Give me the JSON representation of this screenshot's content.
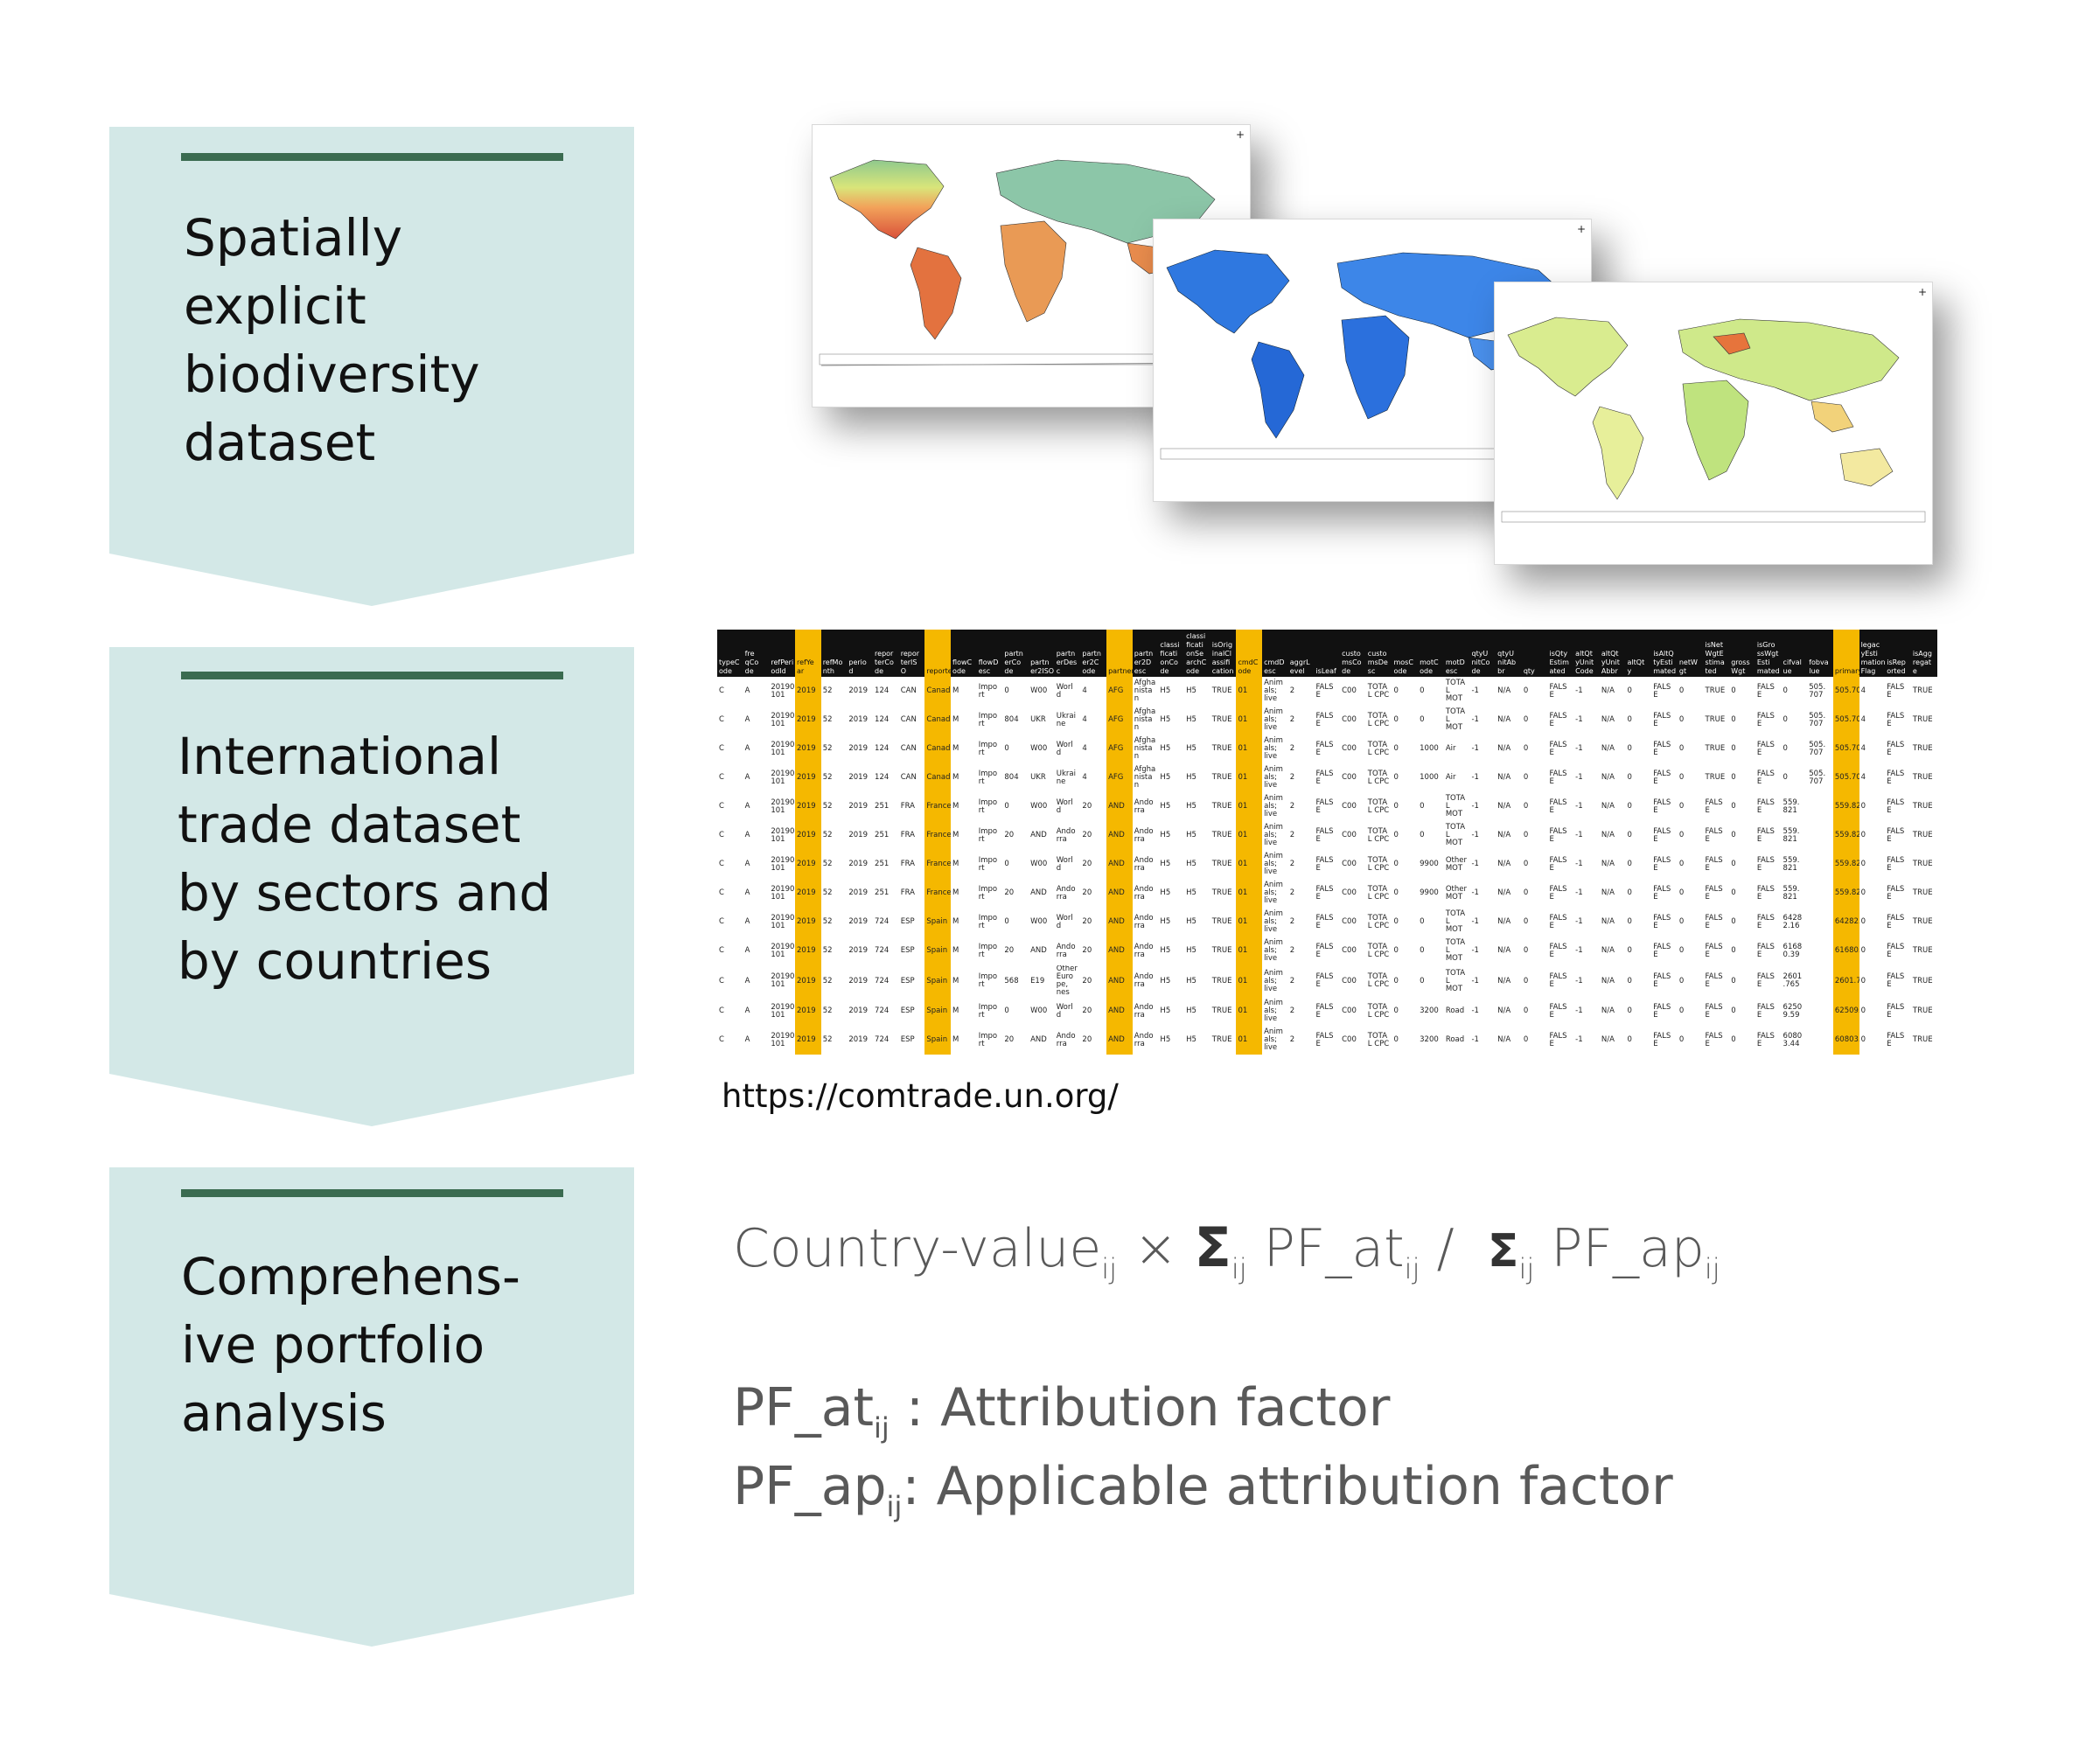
{
  "steps": [
    {
      "lines": [
        "Spatially",
        "explicit",
        "biodiversity",
        "dataset"
      ]
    },
    {
      "lines": [
        "International",
        "trade dataset",
        "by sectors and",
        "by countries"
      ]
    },
    {
      "lines": [
        "Comprehens-",
        "ive portfolio",
        "analysis"
      ]
    }
  ],
  "colors": {
    "panel": "#d3e8e7",
    "bar": "#3a6b50",
    "highlight": "#f5b800",
    "text_grey": "#595959"
  },
  "maps": {
    "north_arrow": "+"
  },
  "table": {
    "headers": [
      "typeC ode",
      "fre qCo de",
      "refPeri odId",
      "refYe ar",
      "refMo nth",
      "perio d",
      "repor terCo de",
      "repor terIS O",
      "reporterDesc",
      "flowC ode",
      "flowD esc",
      "partn erCo de",
      "partn er2ISO",
      "partn erDes c",
      "partn er2C ode",
      "partner2ISO",
      "partn er2D esc",
      "classi ficati onCo de",
      "classi ficati onSe archC ode",
      "isOrig inalCl assifi cation",
      "cmdC ode",
      "cmdD esc",
      "aggrL evel",
      "isLeaf",
      "custo msCo de",
      "custo msDe sc",
      "mosC ode",
      "motC ode",
      "motD esc",
      "qtyU nitCo de",
      "qtyU nitAb br",
      "qty",
      "isQty Estim ated",
      "altQt yUnit Code",
      "altQt yUnit Abbr",
      "altQt y",
      "isAltQ tyEsti mated",
      "netW gt",
      "isNet WgtE stima ted",
      "gross Wgt",
      "isGro ssWgt Esti mated",
      "cifval ue",
      "fobva lue",
      "primaryValue",
      "legac yEsti mation Flag",
      "isRep orted",
      "isAgg regat e"
    ],
    "highlight_cols": [
      3,
      8,
      15,
      20,
      43
    ],
    "rows": [
      [
        "C",
        "A",
        "20190 101",
        "2019",
        "52",
        "2019",
        "124",
        "CAN",
        "Canada",
        "M",
        "Impo rt",
        "0",
        "W00",
        "Worl d",
        "4",
        "AFG",
        "Afgha nista n",
        "H5",
        "H5",
        "TRUE",
        "01",
        "Anim als; live",
        "2",
        "FALS E",
        "C00",
        "TOTA L CPC",
        "0",
        "0",
        "TOTA L MOT",
        "-1",
        "N/A",
        "0",
        "FALS E",
        "-1",
        "N/A",
        "0",
        "FALS E",
        "0",
        "TRUE",
        "0",
        "FALS E",
        "0",
        "505. 707",
        "505.707",
        "4",
        "FALS E",
        "TRUE"
      ],
      [
        "C",
        "A",
        "20190 101",
        "2019",
        "52",
        "2019",
        "124",
        "CAN",
        "Canada",
        "M",
        "Impo rt",
        "804",
        "UKR",
        "Ukrai ne",
        "4",
        "AFG",
        "Afgha nista n",
        "H5",
        "H5",
        "TRUE",
        "01",
        "Anim als; live",
        "2",
        "FALS E",
        "C00",
        "TOTA L CPC",
        "0",
        "0",
        "TOTA L MOT",
        "-1",
        "N/A",
        "0",
        "FALS E",
        "-1",
        "N/A",
        "0",
        "FALS E",
        "0",
        "TRUE",
        "0",
        "FALS E",
        "0",
        "505. 707",
        "505.707",
        "4",
        "FALS E",
        "TRUE"
      ],
      [
        "C",
        "A",
        "20190 101",
        "2019",
        "52",
        "2019",
        "124",
        "CAN",
        "Canada",
        "M",
        "Impo rt",
        "0",
        "W00",
        "Worl d",
        "4",
        "AFG",
        "Afgha nista n",
        "H5",
        "H5",
        "TRUE",
        "01",
        "Anim als; live",
        "2",
        "FALS E",
        "C00",
        "TOTA L CPC",
        "0",
        "1000",
        "Air",
        "-1",
        "N/A",
        "0",
        "FALS E",
        "-1",
        "N/A",
        "0",
        "FALS E",
        "0",
        "TRUE",
        "0",
        "FALS E",
        "0",
        "505. 707",
        "505.707",
        "4",
        "FALS E",
        "TRUE"
      ],
      [
        "C",
        "A",
        "20190 101",
        "2019",
        "52",
        "2019",
        "124",
        "CAN",
        "Canada",
        "M",
        "Impo rt",
        "804",
        "UKR",
        "Ukrai ne",
        "4",
        "AFG",
        "Afgha nista n",
        "H5",
        "H5",
        "TRUE",
        "01",
        "Anim als; live",
        "2",
        "FALS E",
        "C00",
        "TOTA L CPC",
        "0",
        "1000",
        "Air",
        "-1",
        "N/A",
        "0",
        "FALS E",
        "-1",
        "N/A",
        "0",
        "FALS E",
        "0",
        "TRUE",
        "0",
        "FALS E",
        "0",
        "505. 707",
        "505.707",
        "4",
        "FALS E",
        "TRUE"
      ],
      [
        "C",
        "A",
        "20190 101",
        "2019",
        "52",
        "2019",
        "251",
        "FRA",
        "France",
        "M",
        "Impo rt",
        "0",
        "W00",
        "Worl d",
        "20",
        "AND",
        "Ando rra",
        "H5",
        "H5",
        "TRUE",
        "01",
        "Anim als; live",
        "2",
        "FALS E",
        "C00",
        "TOTA L CPC",
        "0",
        "0",
        "TOTA L MOT",
        "-1",
        "N/A",
        "0",
        "FALS E",
        "-1",
        "N/A",
        "0",
        "FALS E",
        "0",
        "FALS E",
        "0",
        "FALS E",
        "559. 821",
        "",
        "559.821",
        "0",
        "FALS E",
        "TRUE"
      ],
      [
        "C",
        "A",
        "20190 101",
        "2019",
        "52",
        "2019",
        "251",
        "FRA",
        "France",
        "M",
        "Impo rt",
        "20",
        "AND",
        "Ando rra",
        "20",
        "AND",
        "Ando rra",
        "H5",
        "H5",
        "TRUE",
        "01",
        "Anim als; live",
        "2",
        "FALS E",
        "C00",
        "TOTA L CPC",
        "0",
        "0",
        "TOTA L MOT",
        "-1",
        "N/A",
        "0",
        "FALS E",
        "-1",
        "N/A",
        "0",
        "FALS E",
        "0",
        "FALS E",
        "0",
        "FALS E",
        "559. 821",
        "",
        "559.821",
        "0",
        "FALS E",
        "TRUE"
      ],
      [
        "C",
        "A",
        "20190 101",
        "2019",
        "52",
        "2019",
        "251",
        "FRA",
        "France",
        "M",
        "Impo rt",
        "0",
        "W00",
        "Worl d",
        "20",
        "AND",
        "Ando rra",
        "H5",
        "H5",
        "TRUE",
        "01",
        "Anim als; live",
        "2",
        "FALS E",
        "C00",
        "TOTA L CPC",
        "0",
        "9900",
        "Other MOT",
        "-1",
        "N/A",
        "0",
        "FALS E",
        "-1",
        "N/A",
        "0",
        "FALS E",
        "0",
        "FALS E",
        "0",
        "FALS E",
        "559. 821",
        "",
        "559.821",
        "0",
        "FALS E",
        "TRUE"
      ],
      [
        "C",
        "A",
        "20190 101",
        "2019",
        "52",
        "2019",
        "251",
        "FRA",
        "France",
        "M",
        "Impo rt",
        "20",
        "AND",
        "Ando rra",
        "20",
        "AND",
        "Ando rra",
        "H5",
        "H5",
        "TRUE",
        "01",
        "Anim als; live",
        "2",
        "FALS E",
        "C00",
        "TOTA L CPC",
        "0",
        "9900",
        "Other MOT",
        "-1",
        "N/A",
        "0",
        "FALS E",
        "-1",
        "N/A",
        "0",
        "FALS E",
        "0",
        "FALS E",
        "0",
        "FALS E",
        "559. 821",
        "",
        "559.821",
        "0",
        "FALS E",
        "TRUE"
      ],
      [
        "C",
        "A",
        "20190 101",
        "2019",
        "52",
        "2019",
        "724",
        "ESP",
        "Spain",
        "M",
        "Impo rt",
        "0",
        "W00",
        "Worl d",
        "20",
        "AND",
        "Ando rra",
        "H5",
        "H5",
        "TRUE",
        "01",
        "Anim als; live",
        "2",
        "FALS E",
        "C00",
        "TOTA L CPC",
        "0",
        "0",
        "TOTA L MOT",
        "-1",
        "N/A",
        "0",
        "FALS E",
        "-1",
        "N/A",
        "0",
        "FALS E",
        "0",
        "FALS E",
        "0",
        "FALS E",
        "6428 2.16",
        "",
        "64282.16",
        "0",
        "FALS E",
        "TRUE"
      ],
      [
        "C",
        "A",
        "20190 101",
        "2019",
        "52",
        "2019",
        "724",
        "ESP",
        "Spain",
        "M",
        "Impo rt",
        "20",
        "AND",
        "Ando rra",
        "20",
        "AND",
        "Ando rra",
        "H5",
        "H5",
        "TRUE",
        "01",
        "Anim als; live",
        "2",
        "FALS E",
        "C00",
        "TOTA L CPC",
        "0",
        "0",
        "TOTA L MOT",
        "-1",
        "N/A",
        "0",
        "FALS E",
        "-1",
        "N/A",
        "0",
        "FALS E",
        "0",
        "FALS E",
        "0",
        "FALS E",
        "6168 0.39",
        "",
        "61680.39",
        "0",
        "FALS E",
        "TRUE"
      ],
      [
        "C",
        "A",
        "20190 101",
        "2019",
        "52",
        "2019",
        "724",
        "ESP",
        "Spain",
        "M",
        "Impo rt",
        "568",
        "E19",
        "Other Euro pe, nes",
        "20",
        "AND",
        "Ando rra",
        "H5",
        "H5",
        "TRUE",
        "01",
        "Anim als; live",
        "2",
        "FALS E",
        "C00",
        "TOTA L CPC",
        "0",
        "0",
        "TOTA L MOT",
        "-1",
        "N/A",
        "0",
        "FALS E",
        "-1",
        "N/A",
        "0",
        "FALS E",
        "0",
        "FALS E",
        "0",
        "FALS E",
        "2601 .765",
        "",
        "2601.765",
        "0",
        "FALS E",
        "TRUE"
      ],
      [
        "C",
        "A",
        "20190 101",
        "2019",
        "52",
        "2019",
        "724",
        "ESP",
        "Spain",
        "M",
        "Impo rt",
        "0",
        "W00",
        "Worl d",
        "20",
        "AND",
        "Ando rra",
        "H5",
        "H5",
        "TRUE",
        "01",
        "Anim als; live",
        "2",
        "FALS E",
        "C00",
        "TOTA L CPC",
        "0",
        "3200",
        "Road",
        "-1",
        "N/A",
        "0",
        "FALS E",
        "-1",
        "N/A",
        "0",
        "FALS E",
        "0",
        "FALS E",
        "0",
        "FALS E",
        "6250 9.59",
        "",
        "62509.59",
        "0",
        "FALS E",
        "TRUE"
      ],
      [
        "C",
        "A",
        "20190 101",
        "2019",
        "52",
        "2019",
        "724",
        "ESP",
        "Spain",
        "M",
        "Impo rt",
        "20",
        "AND",
        "Ando rra",
        "20",
        "AND",
        "Ando rra",
        "H5",
        "H5",
        "TRUE",
        "01",
        "Anim als; live",
        "2",
        "FALS E",
        "C00",
        "TOTA L CPC",
        "0",
        "3200",
        "Road",
        "-1",
        "N/A",
        "0",
        "FALS E",
        "-1",
        "N/A",
        "0",
        "FALS E",
        "0",
        "FALS E",
        "0",
        "FALS E",
        "6080 3.44",
        "",
        "60803.44",
        "0",
        "FALS E",
        "TRUE"
      ]
    ]
  },
  "url": "https://comtrade.un.org/",
  "formula": {
    "country_value": "Country-value",
    "sub": "ij",
    "times": "×",
    "sigma": "Σ",
    "pf_at": "PF_at",
    "divide": "/",
    "pf_ap": "PF_ap"
  },
  "definitions": [
    {
      "term": "PF_at",
      "sub": "ij",
      "text": " : Attribution factor"
    },
    {
      "term": "PF_ap",
      "sub": "ij",
      "text": ": Applicable attribution factor"
    }
  ]
}
